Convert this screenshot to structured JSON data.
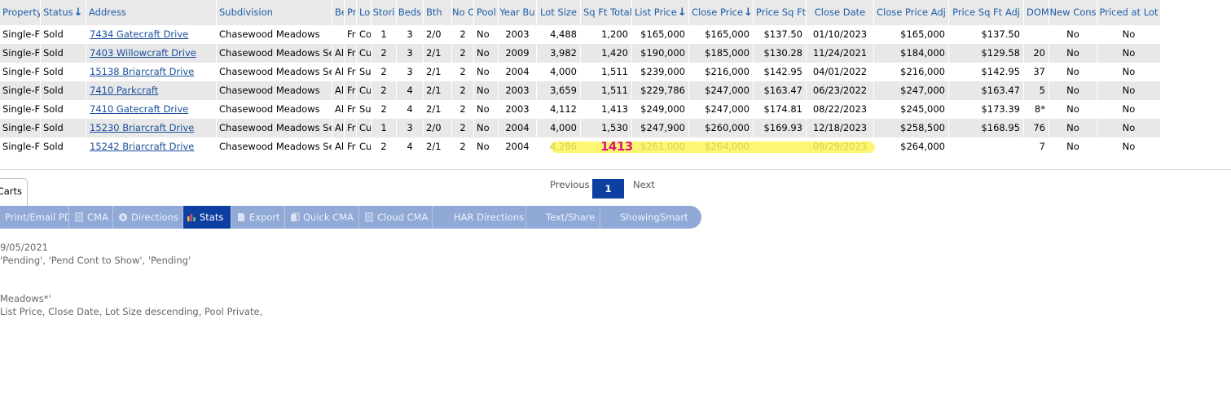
{
  "table": {
    "columns": [
      {
        "key": "property",
        "label": "Property"
      },
      {
        "key": "status",
        "label": "Status",
        "sort": "desc"
      },
      {
        "key": "address",
        "label": "Address"
      },
      {
        "key": "subdivision",
        "label": "Subdivision"
      },
      {
        "key": "be",
        "label": "Be"
      },
      {
        "key": "pr",
        "label": "Pr"
      },
      {
        "key": "lo",
        "label": "Lo"
      },
      {
        "key": "stories",
        "label": "Stori"
      },
      {
        "key": "beds",
        "label": "Beds"
      },
      {
        "key": "bth",
        "label": "Bth"
      },
      {
        "key": "no",
        "label": "No C"
      },
      {
        "key": "pool",
        "label": "Pool"
      },
      {
        "key": "year_built",
        "label": "Year Bu"
      },
      {
        "key": "lot_size",
        "label": "Lot Size"
      },
      {
        "key": "sqft",
        "label": "Sq Ft Total"
      },
      {
        "key": "list_price",
        "label": "List Price",
        "sort": "desc"
      },
      {
        "key": "close_price",
        "label": "Close Price",
        "sort": "desc"
      },
      {
        "key": "price_sqft",
        "label": "Price Sq Ft"
      },
      {
        "key": "close_date",
        "label": "Close Date"
      },
      {
        "key": "close_price_adj",
        "label": "Close Price Adj"
      },
      {
        "key": "price_sqft_adj",
        "label": "Price Sq Ft Adj"
      },
      {
        "key": "dom",
        "label": "DOM"
      },
      {
        "key": "new_cons",
        "label": "New Cons"
      },
      {
        "key": "priced_at_lot",
        "label": "Priced at Lot"
      }
    ],
    "rows": [
      {
        "property": "Single-F",
        "status": "Sold",
        "address": "7434 Gatecraft Drive",
        "subdivision": "Chasewood Meadows",
        "be": "",
        "pr": "Fr",
        "lo": "Co",
        "stories": "1",
        "beds": "3",
        "bth": "2/0",
        "no": "2",
        "pool": "No",
        "year_built": "2003",
        "lot_size": "4,488",
        "sqft": "1,200",
        "list_price": "$165,000",
        "close_price": "$165,000",
        "price_sqft": "$137.50",
        "close_date": "01/10/2023",
        "close_price_adj": "$165,000",
        "price_sqft_adj": "$137.50",
        "dom": "",
        "new_cons": "No",
        "priced_at_lot": "No"
      },
      {
        "property": "Single-F",
        "status": "Sold",
        "address": "7403 Willowcraft Drive",
        "subdivision": "Chasewood Meadows Sec",
        "be": "Al",
        "pr": "Fr",
        "lo": "Cu",
        "stories": "2",
        "beds": "3",
        "bth": "2/1",
        "no": "2",
        "pool": "No",
        "year_built": "2009",
        "lot_size": "3,982",
        "sqft": "1,420",
        "list_price": "$190,000",
        "close_price": "$185,000",
        "price_sqft": "$130.28",
        "close_date": "11/24/2021",
        "close_price_adj": "$184,000",
        "price_sqft_adj": "$129.58",
        "dom": "20",
        "new_cons": "No",
        "priced_at_lot": "No"
      },
      {
        "property": "Single-F",
        "status": "Sold",
        "address": "15138 Briarcraft Drive",
        "subdivision": "Chasewood Meadows Sec",
        "be": "Al",
        "pr": "Fr",
        "lo": "Su",
        "stories": "2",
        "beds": "3",
        "bth": "2/1",
        "no": "2",
        "pool": "No",
        "year_built": "2004",
        "lot_size": "4,000",
        "sqft": "1,511",
        "list_price": "$239,000",
        "close_price": "$216,000",
        "price_sqft": "$142.95",
        "close_date": "04/01/2022",
        "close_price_adj": "$216,000",
        "price_sqft_adj": "$142.95",
        "dom": "37",
        "new_cons": "No",
        "priced_at_lot": "No"
      },
      {
        "property": "Single-F",
        "status": "Sold",
        "address": "7410 Parkcraft",
        "subdivision": "Chasewood Meadows",
        "be": "Al",
        "pr": "Fr",
        "lo": "Cu",
        "stories": "2",
        "beds": "4",
        "bth": "2/1",
        "no": "2",
        "pool": "No",
        "year_built": "2003",
        "lot_size": "3,659",
        "sqft": "1,511",
        "list_price": "$229,786",
        "close_price": "$247,000",
        "price_sqft": "$163.47",
        "close_date": "06/23/2022",
        "close_price_adj": "$247,000",
        "price_sqft_adj": "$163.47",
        "dom": "5",
        "new_cons": "No",
        "priced_at_lot": "No"
      },
      {
        "property": "Single-F",
        "status": "Sold",
        "address": "7410 Gatecraft Drive",
        "subdivision": "Chasewood Meadows",
        "be": "Al",
        "pr": "Fr",
        "lo": "Su",
        "stories": "2",
        "beds": "4",
        "bth": "2/1",
        "no": "2",
        "pool": "No",
        "year_built": "2003",
        "lot_size": "4,112",
        "sqft": "1,413",
        "list_price": "$249,000",
        "close_price": "$247,000",
        "price_sqft": "$174.81",
        "close_date": "08/22/2023",
        "close_price_adj": "$245,000",
        "price_sqft_adj": "$173.39",
        "dom": "8*",
        "new_cons": "No",
        "priced_at_lot": "No"
      },
      {
        "property": "Single-F",
        "status": "Sold",
        "address": "15230 Briarcraft Drive",
        "subdivision": "Chasewood Meadows Sec",
        "be": "Al",
        "pr": "Fr",
        "lo": "Cu",
        "stories": "1",
        "beds": "3",
        "bth": "2/0",
        "no": "2",
        "pool": "No",
        "year_built": "2004",
        "lot_size": "4,000",
        "sqft": "1,530",
        "list_price": "$247,900",
        "close_price": "$260,000",
        "price_sqft": "$169.93",
        "close_date": "12/18/2023",
        "close_price_adj": "$258,500",
        "price_sqft_adj": "$168.95",
        "dom": "76",
        "new_cons": "No",
        "priced_at_lot": "No"
      },
      {
        "property": "Single-F",
        "status": "Sold",
        "address": "15242 Briarcraft Drive",
        "subdivision": "Chasewood Meadows Sec",
        "be": "Al",
        "pr": "Fr",
        "lo": "Cu",
        "stories": "2",
        "beds": "4",
        "bth": "2/1",
        "no": "2",
        "pool": "No",
        "year_built": "2004",
        "lot_size": "4,286",
        "sqft": "",
        "list_price": "$261,000",
        "close_price": "$264,000",
        "price_sqft": "",
        "close_date": "09/29/2023",
        "close_price_adj": "$264,000",
        "price_sqft_adj": "",
        "dom": "7",
        "new_cons": "No",
        "priced_at_lot": "No"
      }
    ]
  },
  "annotation": {
    "text": "1413",
    "color": "#d81b7a",
    "highlight_color": "#fbf55a"
  },
  "tabs": {
    "carts_label": "Carts"
  },
  "pagination": {
    "previous": "Previous",
    "current": "1",
    "next": "Next"
  },
  "toolbar": {
    "items": [
      {
        "label": "Print/Email PDF",
        "icon": "pdf-icon"
      },
      {
        "label": "CMA",
        "icon": "document-icon"
      },
      {
        "label": "Directions",
        "icon": "compass-icon"
      },
      {
        "label": "Stats",
        "icon": "bar-chart-icon",
        "active": true
      },
      {
        "label": "Export",
        "icon": "export-icon"
      },
      {
        "label": "Quick CMA",
        "icon": "quick-cma-icon"
      },
      {
        "label": "Cloud CMA",
        "icon": "document-icon"
      },
      {
        "label": "HAR Directions",
        "icon": ""
      },
      {
        "label": "Text/Share",
        "icon": ""
      },
      {
        "label": "ShowingSmart",
        "icon": ""
      }
    ]
  },
  "search_info": {
    "line1": "9/05/2021",
    "line2": "'Pending', 'Pend Cont to Show', 'Pending'",
    "line3": "Meadows*'",
    "line4": "List Price, Close Date, Lot Size descending, Pool Private,"
  },
  "colors": {
    "link": "#1a4f9c",
    "header_text": "#1f5ea8",
    "toolbar": "#90a9d6",
    "active": "#0d3fa0"
  }
}
